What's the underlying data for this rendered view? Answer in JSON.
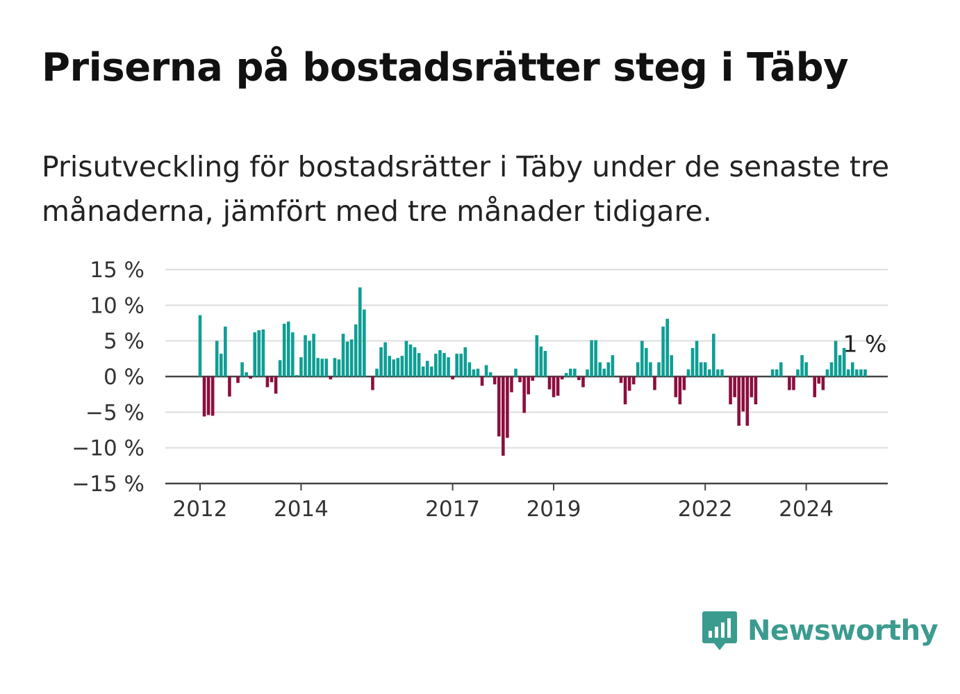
{
  "header": {
    "title": "Priserna på bostadsrätter steg i Täby",
    "subtitle": "Prisutveckling för bostadsrätter i Täby under de senaste tre månaderna, jämfört med tre månader tidigare."
  },
  "brand": {
    "name": "Newsworthy",
    "color": "#3b9b8f",
    "icon": "bar-chart-speech-bubble-icon"
  },
  "chart_data": {
    "type": "bar",
    "title": "",
    "xlabel": "",
    "ylabel": "",
    "ylim": [
      -15,
      15
    ],
    "y_ticks": [
      15,
      10,
      5,
      0,
      -5,
      -10,
      -15
    ],
    "y_tick_labels": [
      "15 %",
      "10 %",
      "5 %",
      "0 %",
      "−5 %",
      "−10 %",
      "−15 %"
    ],
    "x_ticks": [
      {
        "label": "2012",
        "index": 0
      },
      {
        "label": "2014",
        "index": 24
      },
      {
        "label": "2017",
        "index": 60
      },
      {
        "label": "2019",
        "index": 84
      },
      {
        "label": "2022",
        "index": 120
      },
      {
        "label": "2024",
        "index": 144
      }
    ],
    "x_start": "2012-01",
    "frequency": "monthly",
    "grid": true,
    "positive_color": "#0e9e94",
    "negative_color": "#8c0e3f",
    "end_label": "1 %",
    "values": [
      8.6,
      -5.6,
      -5.4,
      -5.5,
      5.0,
      3.2,
      7.0,
      -2.8,
      0,
      -0.9,
      2.0,
      0.6,
      -0.3,
      6.2,
      6.5,
      6.6,
      -1.5,
      -0.8,
      -2.4,
      2.3,
      7.4,
      7.7,
      6.2,
      0.2,
      2.7,
      5.8,
      5.0,
      6.0,
      2.6,
      2.5,
      2.5,
      -0.4,
      2.6,
      2.4,
      6.0,
      4.9,
      5.2,
      7.3,
      12.5,
      9.4,
      0,
      -1.9,
      1.1,
      4.1,
      4.8,
      2.9,
      2.4,
      2.6,
      2.9,
      5.0,
      4.5,
      4.1,
      3.3,
      1.4,
      2.2,
      1.4,
      3.2,
      3.7,
      3.3,
      2.7,
      -0.4,
      3.2,
      3.2,
      4.1,
      2.0,
      1.0,
      1.1,
      -1.3,
      1.6,
      0.6,
      -1.1,
      -8.4,
      -11.1,
      -8.6,
      -2.2,
      1.1,
      -0.8,
      -5.1,
      -2.5,
      -0.6,
      5.8,
      4.2,
      3.6,
      -1.8,
      -2.9,
      -2.7,
      -0.4,
      0.5,
      1.1,
      1.1,
      -0.5,
      -1.5,
      1.0,
      5.1,
      5.1,
      2.0,
      1.1,
      2.0,
      3.0,
      0,
      -0.9,
      -3.9,
      -2.0,
      -1.1,
      2.0,
      5.0,
      4.0,
      2.0,
      -1.9,
      2.0,
      7.0,
      8.1,
      3.0,
      -2.9,
      -3.9,
      -1.9,
      1.0,
      4.0,
      5.0,
      2.0,
      2.0,
      1.0,
      6.0,
      1.0,
      1.0,
      0,
      -3.9,
      -2.9,
      -6.9,
      -4.9,
      -6.9,
      -2.9,
      -3.9,
      0,
      0,
      0,
      1.0,
      1.0,
      2.0,
      0,
      -1.9,
      -1.9,
      1.0,
      3.0,
      2.0,
      0,
      -2.9,
      -1.0,
      -1.9,
      1.0,
      2.0,
      5.0,
      3.0,
      4.0,
      1.0,
      2.0,
      1.0,
      1.0,
      1.0
    ]
  }
}
